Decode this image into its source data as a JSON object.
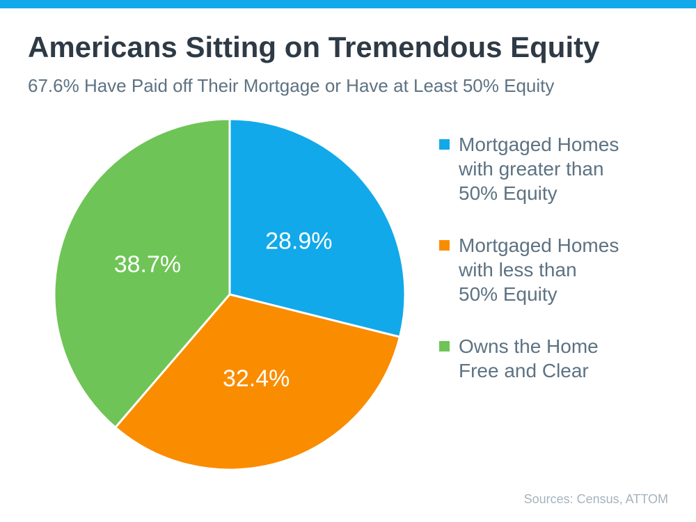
{
  "page": {
    "accent_bar_color": "#11a9ea",
    "background": "#ffffff"
  },
  "header": {
    "title": "Americans Sitting on Tremendous Equity",
    "subtitle": "67.6% Have Paid off Their Mortgage or Have at Least 50% Equity"
  },
  "chart_data": {
    "type": "pie",
    "title": "Americans Sitting on Tremendous Equity",
    "subtitle": "67.6% Have Paid off Their Mortgage or Have at Least 50% Equity",
    "start_angle_deg": 0,
    "direction": "clockwise",
    "legend_position": "right",
    "slice_label_color": "#ffffff",
    "slice_border_color": "#ffffff",
    "slices": [
      {
        "label": "Mortgaged Homes with greater than 50% Equity",
        "value": 28.9,
        "display": "28.9%",
        "color": "#11a9ea"
      },
      {
        "label": "Mortgaged Homes with less than 50% Equity",
        "value": 32.4,
        "display": "32.4%",
        "color": "#fa8c00"
      },
      {
        "label": "Owns the Home Free and Clear",
        "value": 38.7,
        "display": "38.7%",
        "color": "#6ec456"
      }
    ]
  },
  "legend": {
    "items": [
      {
        "label": "Mortgaged Homes\nwith greater than\n50% Equity",
        "color": "#11a9ea"
      },
      {
        "label": "Mortgaged Homes\nwith less than\n50% Equity",
        "color": "#fa8c00"
      },
      {
        "label": "Owns the Home\nFree and Clear",
        "color": "#6ec456"
      }
    ]
  },
  "footer": {
    "sources": "Sources: Census, ATTOM"
  }
}
